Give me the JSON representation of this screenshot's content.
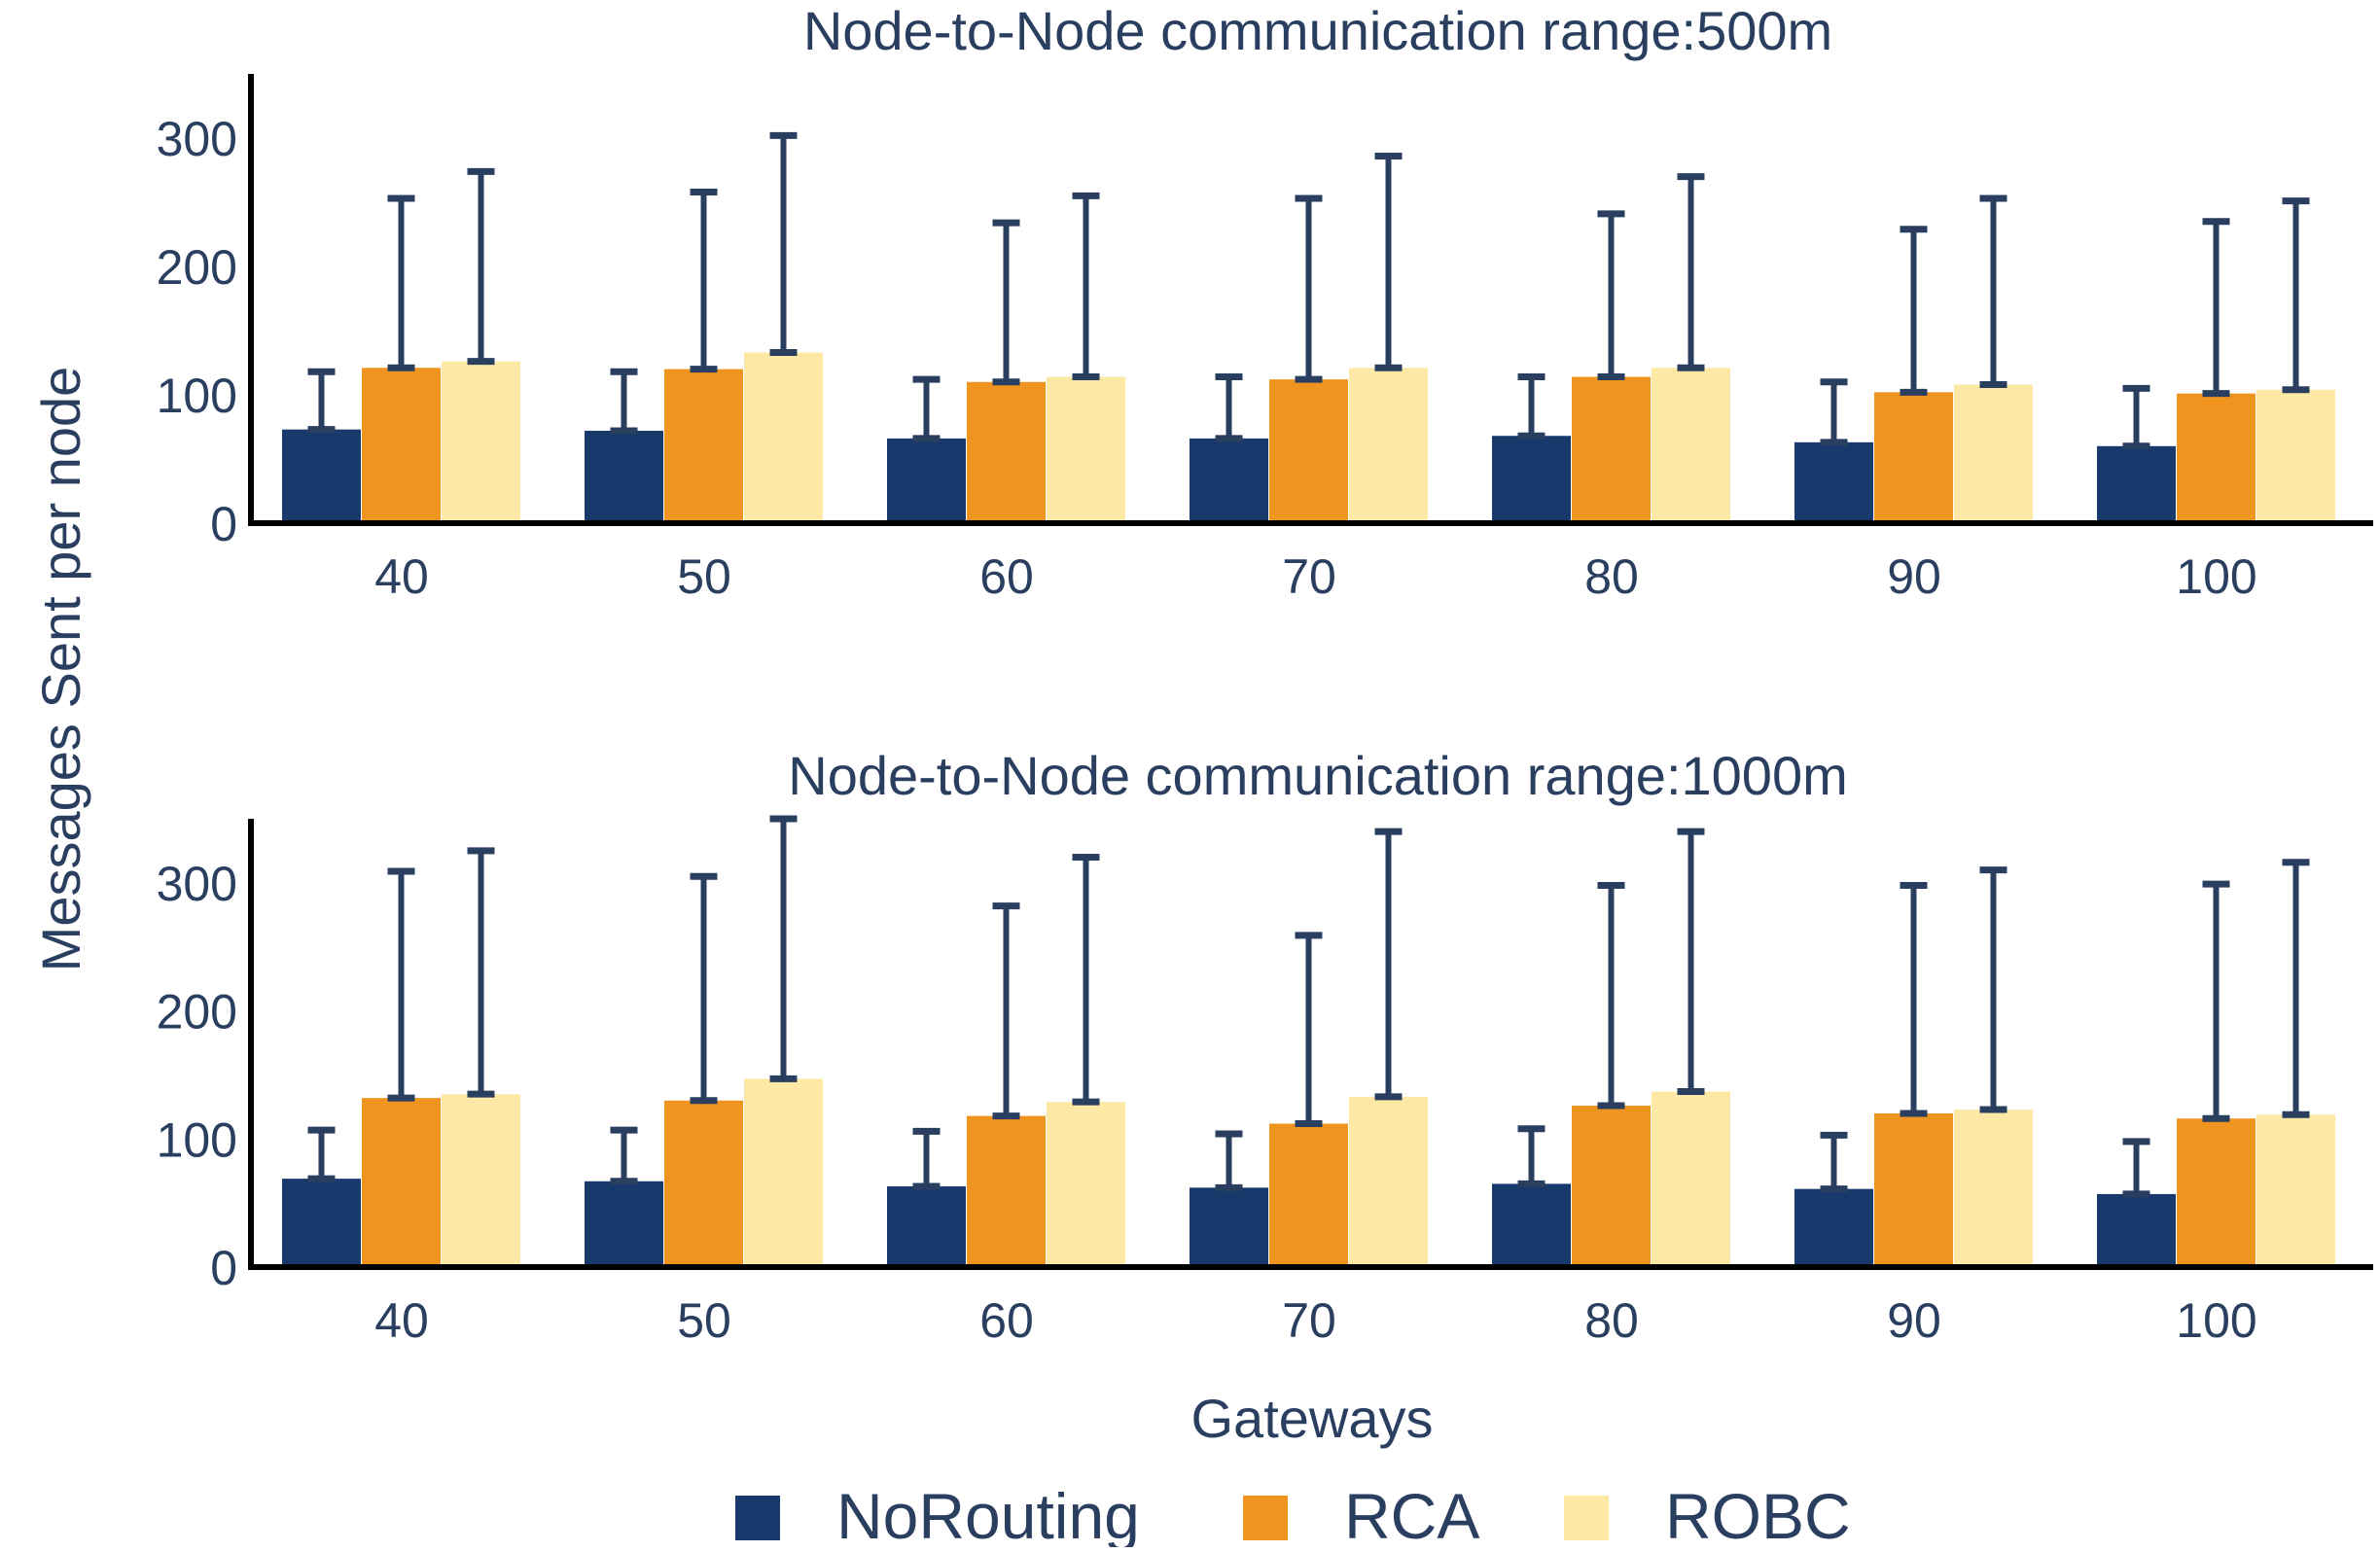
{
  "figure": {
    "ylabel": "Messages Sent per node",
    "xlabel": "Gateways"
  },
  "legend": [
    {
      "name": "NoRouting",
      "color": "#17396b"
    },
    {
      "name": "RCA",
      "color": "#ef951f"
    },
    {
      "name": "ROBC",
      "color": "#fde9a5"
    }
  ],
  "chart_data": [
    {
      "type": "bar",
      "title": "Node-to-Node communication range:500m",
      "categories": [
        "40",
        "50",
        "60",
        "70",
        "80",
        "90",
        "100"
      ],
      "ylim": [
        0,
        350
      ],
      "yticks": [
        "0",
        "100",
        "200",
        "300"
      ],
      "series": [
        {
          "name": "NoRouting",
          "values": [
            73,
            72,
            66,
            66,
            68,
            63,
            60
          ],
          "error_upper": [
            118,
            118,
            112,
            114,
            114,
            110,
            105
          ]
        },
        {
          "name": "RCA",
          "values": [
            121,
            120,
            110,
            112,
            114,
            102,
            101
          ],
          "error_upper": [
            253,
            258,
            234,
            253,
            241,
            229,
            235
          ]
        },
        {
          "name": "ROBC",
          "values": [
            126,
            133,
            114,
            121,
            121,
            108,
            104
          ],
          "error_upper": [
            274,
            302,
            255,
            286,
            270,
            253,
            251
          ]
        }
      ],
      "grid": false
    },
    {
      "type": "bar",
      "title": "Node-to-Node communication range:1000m",
      "categories": [
        "40",
        "50",
        "60",
        "70",
        "80",
        "90",
        "100"
      ],
      "ylim": [
        0,
        350
      ],
      "yticks": [
        "0",
        "100",
        "200",
        "300"
      ],
      "series": [
        {
          "name": "NoRouting",
          "values": [
            69,
            67,
            63,
            62,
            65,
            61,
            57
          ],
          "error_upper": [
            107,
            107,
            106,
            104,
            108,
            103,
            98
          ]
        },
        {
          "name": "RCA",
          "values": [
            132,
            130,
            118,
            112,
            126,
            120,
            116
          ],
          "error_upper": [
            309,
            305,
            282,
            259,
            298,
            298,
            299
          ]
        },
        {
          "name": "ROBC",
          "values": [
            135,
            147,
            129,
            133,
            137,
            123,
            119
          ],
          "error_upper": [
            325,
            350,
            320,
            340,
            340,
            310,
            316
          ]
        }
      ],
      "grid": false
    }
  ]
}
